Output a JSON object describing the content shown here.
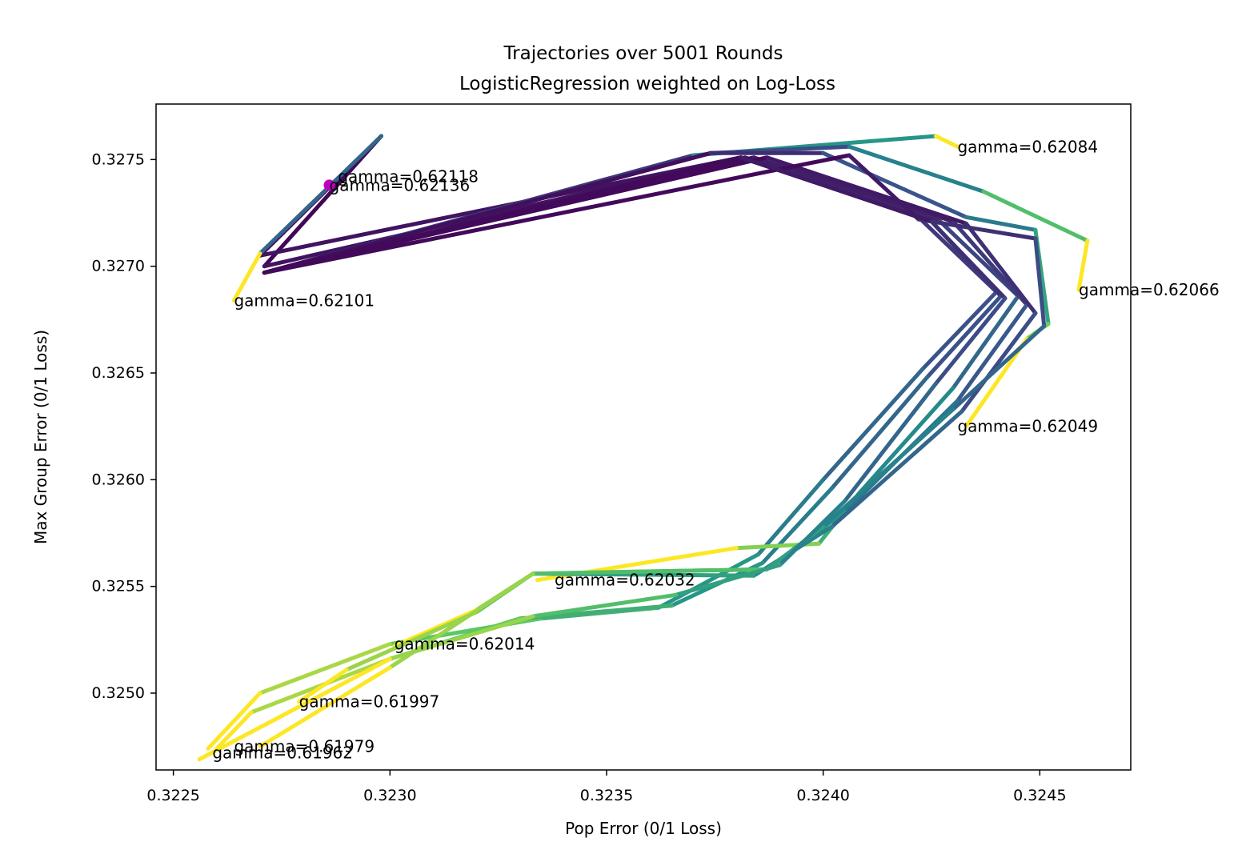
{
  "chart_data": {
    "type": "line",
    "title": "Trajectories over 5001 Rounds",
    "subtitle": "LogisticRegression weighted on Log-Loss",
    "xlabel": "Pop Error (0/1 Loss)",
    "ylabel": "Max Group Error (0/1 Loss)",
    "xlim": [
      0.32246,
      0.32471
    ],
    "ylim": [
      0.32464,
      0.32776
    ],
    "xticks": [
      {
        "value": 0.3225,
        "label": "0.3225"
      },
      {
        "value": 0.323,
        "label": "0.3230"
      },
      {
        "value": 0.3235,
        "label": "0.3235"
      },
      {
        "value": 0.324,
        "label": "0.3240"
      },
      {
        "value": 0.3245,
        "label": "0.3245"
      }
    ],
    "yticks": [
      {
        "value": 0.325,
        "label": "0.3250"
      },
      {
        "value": 0.3255,
        "label": "0.3255"
      },
      {
        "value": 0.326,
        "label": "0.3260"
      },
      {
        "value": 0.3265,
        "label": "0.3265"
      },
      {
        "value": 0.327,
        "label": "0.3270"
      },
      {
        "value": 0.3275,
        "label": "0.3275"
      }
    ],
    "grid": false,
    "colormap": [
      "#440154",
      "#3b528b",
      "#21918c",
      "#5ec962",
      "#fde725"
    ],
    "series": [
      {
        "gamma": 0.62136,
        "points": [
          [
            0.32298,
            0.32761
          ],
          [
            0.32271,
            0.327
          ],
          [
            0.32381,
            0.32751
          ],
          [
            0.32422,
            0.32723
          ],
          [
            0.3244,
            0.32688
          ],
          [
            0.32423,
            0.32652
          ],
          [
            0.324,
            0.326
          ],
          [
            0.32385,
            0.32565
          ],
          [
            0.32362,
            0.3254
          ],
          [
            0.32335,
            0.32535
          ],
          [
            0.323,
            0.32523
          ],
          [
            0.3227,
            0.325
          ],
          [
            0.32258,
            0.32474
          ]
        ]
      },
      {
        "gamma": 0.62118,
        "points": [
          [
            0.32298,
            0.32761
          ],
          [
            0.3227,
            0.32705
          ],
          [
            0.32381,
            0.32751
          ],
          [
            0.32425,
            0.32721
          ],
          [
            0.32441,
            0.32686
          ],
          [
            0.32424,
            0.32648
          ],
          [
            0.32402,
            0.32596
          ],
          [
            0.32386,
            0.32561
          ],
          [
            0.32365,
            0.32541
          ],
          [
            0.3233,
            0.32535
          ],
          [
            0.323,
            0.32516
          ],
          [
            0.32268,
            0.32491
          ],
          [
            0.3226,
            0.32474
          ]
        ]
      },
      {
        "gamma": 0.62101,
        "points": [
          [
            0.32298,
            0.32761
          ],
          [
            0.3227,
            0.32706
          ],
          [
            0.32264,
            0.32684
          ]
        ]
      },
      {
        "gamma": 0.62084,
        "points": [
          [
            0.32271,
            0.32697
          ],
          [
            0.3237,
            0.32752
          ],
          [
            0.32426,
            0.32761
          ],
          [
            0.32431,
            0.32756
          ]
        ]
      },
      {
        "gamma": 0.62066,
        "points": [
          [
            0.32271,
            0.32697
          ],
          [
            0.32374,
            0.32753
          ],
          [
            0.32406,
            0.32756
          ],
          [
            0.32437,
            0.32735
          ],
          [
            0.32461,
            0.32712
          ],
          [
            0.32459,
            0.32689
          ]
        ]
      },
      {
        "gamma": 0.62049,
        "points": [
          [
            0.32271,
            0.32697
          ],
          [
            0.32374,
            0.32753
          ],
          [
            0.324,
            0.32753
          ],
          [
            0.32433,
            0.32723
          ],
          [
            0.32449,
            0.32717
          ],
          [
            0.32452,
            0.32673
          ],
          [
            0.32447,
            0.32666
          ],
          [
            0.32433,
            0.32625
          ]
        ]
      },
      {
        "gamma": 0.62032,
        "points": [
          [
            0.32271,
            0.32697
          ],
          [
            0.32382,
            0.32751
          ],
          [
            0.32427,
            0.32721
          ],
          [
            0.32445,
            0.32686
          ],
          [
            0.3243,
            0.32643
          ],
          [
            0.32408,
            0.32593
          ],
          [
            0.32399,
            0.3257
          ],
          [
            0.3238,
            0.32568
          ],
          [
            0.32334,
            0.32553
          ]
        ]
      },
      {
        "gamma": 0.62014,
        "points": [
          [
            0.32271,
            0.32697
          ],
          [
            0.32384,
            0.32751
          ],
          [
            0.3243,
            0.32721
          ],
          [
            0.32447,
            0.32682
          ],
          [
            0.32431,
            0.32637
          ],
          [
            0.32405,
            0.32585
          ],
          [
            0.32387,
            0.32558
          ],
          [
            0.32333,
            0.32556
          ],
          [
            0.3232,
            0.32539
          ],
          [
            0.32301,
            0.32522
          ]
        ]
      },
      {
        "gamma": 0.61997,
        "points": [
          [
            0.32271,
            0.32697
          ],
          [
            0.32387,
            0.32751
          ],
          [
            0.32433,
            0.3272
          ],
          [
            0.32449,
            0.32678
          ],
          [
            0.32432,
            0.32632
          ],
          [
            0.32402,
            0.32578
          ],
          [
            0.32384,
            0.32555
          ],
          [
            0.32333,
            0.32556
          ],
          [
            0.3232,
            0.32538
          ],
          [
            0.3229,
            0.32511
          ],
          [
            0.32279,
            0.32496
          ]
        ]
      },
      {
        "gamma": 0.61979,
        "points": [
          [
            0.32271,
            0.32697
          ],
          [
            0.32406,
            0.32752
          ],
          [
            0.32422,
            0.32722
          ],
          [
            0.32449,
            0.32713
          ],
          [
            0.32451,
            0.32672
          ],
          [
            0.3243,
            0.32633
          ],
          [
            0.324,
            0.32578
          ],
          [
            0.32387,
            0.32558
          ],
          [
            0.32333,
            0.32556
          ],
          [
            0.323,
            0.32512
          ],
          [
            0.3227,
            0.32475
          ]
        ]
      },
      {
        "gamma": 0.61962,
        "points": [
          [
            0.32271,
            0.32697
          ],
          [
            0.32381,
            0.32751
          ],
          [
            0.32425,
            0.32721
          ],
          [
            0.32442,
            0.32685
          ],
          [
            0.32426,
            0.32645
          ],
          [
            0.32405,
            0.3259
          ],
          [
            0.3239,
            0.3256
          ],
          [
            0.32366,
            0.32546
          ],
          [
            0.32333,
            0.32536
          ],
          [
            0.323,
            0.32516
          ],
          [
            0.32256,
            0.32469
          ]
        ]
      }
    ],
    "annotations": [
      {
        "text": "gamma=0.62118",
        "x": 0.32288,
        "y": 0.32742
      },
      {
        "text": "gamma=0.62136",
        "x": 0.32286,
        "y": 0.32738
      },
      {
        "text": "gamma=0.62101",
        "x": 0.32264,
        "y": 0.32684
      },
      {
        "text": "gamma=0.62084",
        "x": 0.32431,
        "y": 0.32756
      },
      {
        "text": "gamma=0.62066",
        "x": 0.32459,
        "y": 0.32689
      },
      {
        "text": "gamma=0.62049",
        "x": 0.32431,
        "y": 0.32625
      },
      {
        "text": "gamma=0.62032",
        "x": 0.32338,
        "y": 0.32553
      },
      {
        "text": "gamma=0.62014",
        "x": 0.32301,
        "y": 0.32523
      },
      {
        "text": "gamma=0.61997",
        "x": 0.32279,
        "y": 0.32496
      },
      {
        "text": "gamma=0.61979",
        "x": 0.32264,
        "y": 0.32475
      },
      {
        "text": "gamma=0.61962",
        "x": 0.32259,
        "y": 0.32472
      }
    ],
    "marker": {
      "x": 0.32286,
      "y": 0.32738,
      "color": "#c000c0"
    }
  }
}
